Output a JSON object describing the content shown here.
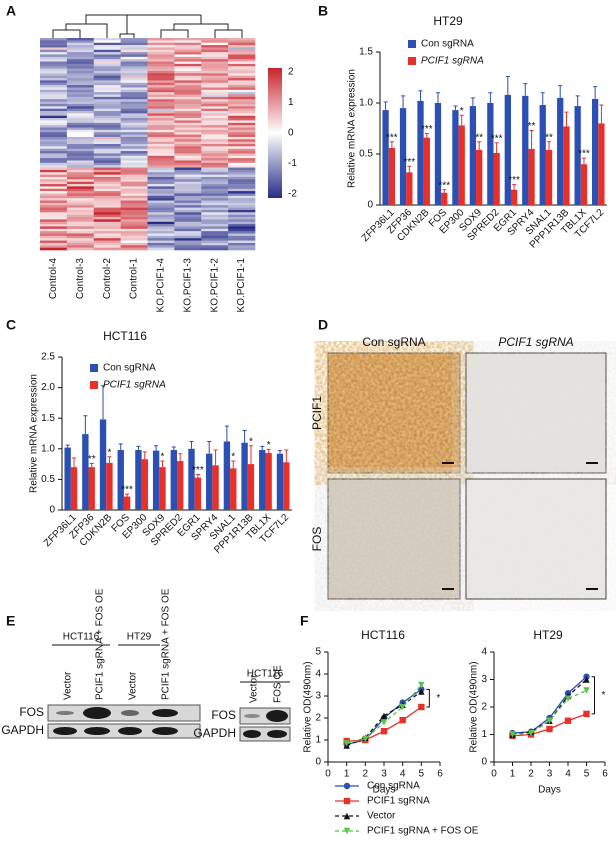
{
  "panels": [
    "A",
    "B",
    "C",
    "D",
    "E",
    "F"
  ],
  "heatmap": {
    "columns": [
      "Control-4",
      "Control-3",
      "Control-2",
      "Control-1",
      "KO.PCIF1-4",
      "KO.PCIF1-3",
      "KO.PCIF1-2",
      "KO.PCIF1-1"
    ],
    "colorbar_ticks": [
      2,
      1,
      0,
      -1,
      -2
    ]
  },
  "chart_data": [
    {
      "type": "bar",
      "title": "HT29",
      "ylabel": "Relative mRNA expression",
      "categories": [
        "ZFP36L1",
        "ZFP36",
        "CDKN2B",
        "FOS",
        "EP300",
        "SOX9",
        "SPRED2",
        "EGR1",
        "SPRY4",
        "SNAL1",
        "PPP1R13B",
        "TBL1X",
        "TCF7L2"
      ],
      "series": [
        {
          "name": "Con sgRNA",
          "color": "#2b4fb3",
          "values": [
            0.93,
            0.95,
            1.02,
            1.0,
            0.93,
            0.97,
            1.0,
            1.08,
            1.07,
            0.98,
            1.05,
            0.97,
            1.04
          ],
          "errors": [
            0.08,
            0.12,
            0.1,
            0.1,
            0.04,
            0.08,
            0.1,
            0.18,
            0.12,
            0.12,
            0.12,
            0.1,
            0.12
          ]
        },
        {
          "name": "PCIF1 sgRNA",
          "color": "#e8302a",
          "values": [
            0.56,
            0.32,
            0.66,
            0.12,
            0.78,
            0.54,
            0.51,
            0.15,
            0.55,
            0.54,
            0.77,
            0.4,
            0.8
          ],
          "errors": [
            0.06,
            0.06,
            0.04,
            0.03,
            0.1,
            0.08,
            0.1,
            0.05,
            0.18,
            0.08,
            0.14,
            0.06,
            0.18
          ]
        }
      ],
      "annotations": [
        "***",
        "***",
        "***",
        "***",
        "*",
        "**",
        "***",
        "***",
        "**",
        "**",
        null,
        "***",
        null
      ],
      "ylim": [
        0,
        1.5
      ],
      "yticks": [
        0,
        0.5,
        {
          "value": 1,
          "label": "1.0"
        },
        1.5
      ]
    },
    {
      "type": "bar",
      "title": "HCT116",
      "ylabel": "Relative mRNA expression",
      "categories": [
        "ZFP36L1",
        "ZFP36",
        "CDKN2B",
        "FOS",
        "EP300",
        "SOX9",
        "SPRED2",
        "EGR1",
        "SPRY4",
        "SNAL1",
        "PPP1R13B",
        "TBL1X",
        "TCF7L2"
      ],
      "series": [
        {
          "name": "Con sgRNA",
          "color": "#2b4fb3",
          "values": [
            1.02,
            1.24,
            1.48,
            0.98,
            0.98,
            0.97,
            0.98,
            1.0,
            0.92,
            1.12,
            1.1,
            0.98,
            0.92
          ],
          "errors": [
            0.04,
            0.3,
            0.55,
            0.1,
            0.06,
            0.08,
            0.05,
            0.12,
            0.2,
            0.25,
            0.2,
            0.06,
            0.05
          ]
        },
        {
          "name": "PCIF1 sgRNA",
          "color": "#e8302a",
          "values": [
            0.7,
            0.7,
            0.77,
            0.22,
            0.83,
            0.7,
            0.8,
            0.53,
            0.73,
            0.68,
            0.75,
            0.93,
            0.78
          ],
          "errors": [
            0.15,
            0.06,
            0.1,
            0.04,
            0.12,
            0.1,
            0.12,
            0.05,
            0.25,
            0.12,
            0.3,
            0.06,
            0.2
          ]
        }
      ],
      "annotations": [
        null,
        "**",
        "*",
        "***",
        null,
        "*",
        null,
        "***",
        null,
        "*",
        "*",
        "*",
        null
      ],
      "ylim": [
        0,
        2.5
      ],
      "yticks": [
        0,
        0.5,
        {
          "value": 1,
          "label": "1.0"
        },
        1.5,
        {
          "value": 2,
          "label": "2.0"
        },
        2.5
      ]
    },
    {
      "type": "line",
      "title": "HCT116",
      "xlabel": "Days",
      "ylabel": "Relative OD(490nm)",
      "annotation": "*",
      "x": [
        1,
        2,
        3,
        4,
        5
      ],
      "series": [
        {
          "name": "Con sgRNA",
          "color": "#2b4fb3",
          "marker": "circle",
          "dashed": false,
          "values": [
            0.8,
            1.0,
            2.0,
            2.7,
            3.3
          ]
        },
        {
          "name": "PCIF1 sgRNA",
          "color": "#e8302a",
          "marker": "square",
          "dashed": false,
          "values": [
            0.95,
            1.0,
            1.4,
            1.9,
            2.5
          ]
        },
        {
          "name": "Vector",
          "color": "#111111",
          "marker": "triangle",
          "dashed": true,
          "values": [
            0.75,
            1.1,
            2.1,
            2.6,
            3.2
          ]
        },
        {
          "name": "PCIF1 sgRNA + FOS OE",
          "color": "#5bc24a",
          "marker": "triangle-down",
          "dashed": true,
          "values": [
            0.85,
            1.05,
            1.8,
            2.5,
            3.5
          ]
        }
      ],
      "xlim": [
        0,
        6
      ],
      "xticks": [
        0,
        1,
        2,
        3,
        4,
        5,
        6
      ],
      "ylim": [
        0,
        5
      ],
      "yticks": [
        0,
        1,
        2,
        3,
        4,
        5
      ]
    },
    {
      "type": "line",
      "title": "HT29",
      "xlabel": "Days",
      "ylabel": "Relative OD(490nm)",
      "annotation": "*",
      "x": [
        1,
        2,
        3,
        4,
        5
      ],
      "series": [
        {
          "name": "Con sgRNA",
          "color": "#2b4fb3",
          "marker": "circle",
          "dashed": false,
          "values": [
            1.05,
            1.1,
            1.6,
            2.5,
            3.1
          ]
        },
        {
          "name": "PCIF1 sgRNA",
          "color": "#e8302a",
          "marker": "square",
          "dashed": false,
          "values": [
            0.95,
            1.0,
            1.2,
            1.5,
            1.75
          ]
        },
        {
          "name": "Vector",
          "color": "#111111",
          "marker": "triangle",
          "dashed": true,
          "values": [
            1.0,
            1.1,
            1.5,
            2.4,
            3.0
          ]
        },
        {
          "name": "PCIF1 sgRNA + FOS OE",
          "color": "#5bc24a",
          "marker": "triangle-down",
          "dashed": true,
          "values": [
            1.0,
            1.05,
            1.5,
            2.3,
            2.6
          ]
        }
      ],
      "xlim": [
        0,
        6
      ],
      "xticks": [
        0,
        1,
        2,
        3,
        4,
        5,
        6
      ],
      "ylim": [
        0,
        4
      ],
      "yticks": [
        0,
        1,
        2,
        3,
        4
      ]
    }
  ],
  "images": {
    "columns": [
      "Con sgRNA",
      "PCIF1 sgRNA"
    ],
    "rows": [
      "PCIF1",
      "FOS"
    ]
  },
  "blot": {
    "groups": [
      "HCT116",
      "HT29"
    ],
    "lanes": [
      "Vector",
      "PCIF1 sgRNA + FOS OE",
      "Vector",
      "PCIF1 sgRNA + FOS OE"
    ],
    "rows": [
      "FOS",
      "GAPDH"
    ],
    "right_group": "HCT116",
    "right_lanes": [
      "Vector",
      "FOS OE"
    ],
    "right_rows": [
      "FOS",
      "GAPDH"
    ]
  }
}
